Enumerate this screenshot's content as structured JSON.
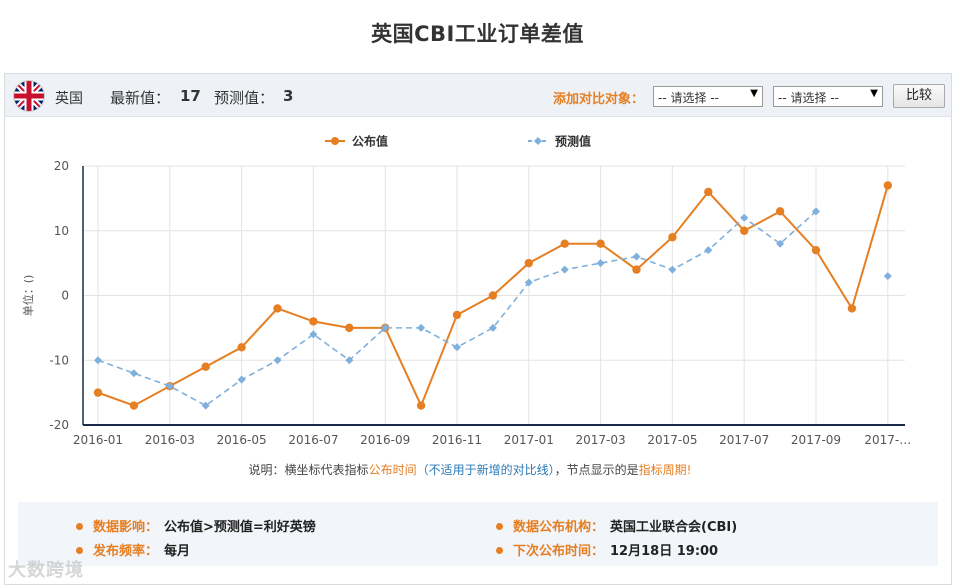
{
  "page": {
    "title": "英国CBI工业订单差值"
  },
  "toolbar": {
    "country": "英国",
    "latest_label": "最新值：",
    "latest_value": "17",
    "forecast_label": "预测值：",
    "forecast_value": "3",
    "compare_label": "添加对比对象：",
    "select_1": "-- 请选择 --",
    "select_2": "-- 请选择 --",
    "compare_button": "比较",
    "flag_icon": "uk-flag-icon"
  },
  "chart_data": {
    "type": "line",
    "ylabel": "单位：()",
    "ylim": [
      -20,
      20
    ],
    "yticks": [
      20,
      10,
      0,
      -10,
      -20
    ],
    "x": [
      "2016-01",
      "2016-02",
      "2016-03",
      "2016-04",
      "2016-05",
      "2016-06",
      "2016-07",
      "2016-08",
      "2016-09",
      "2016-10",
      "2016-11",
      "2016-12",
      "2017-01",
      "2017-02",
      "2017-03",
      "2017-04",
      "2017-05",
      "2017-06",
      "2017-07",
      "2017-08",
      "2017-09",
      "2017-10",
      "2017-11"
    ],
    "xtick_labels": [
      "2016-01",
      "2016-03",
      "2016-05",
      "2016-07",
      "2016-09",
      "2016-11",
      "2017-01",
      "2017-03",
      "2017-05",
      "2017-07",
      "2017-09",
      "2017-…"
    ],
    "series": [
      {
        "name": "公布值",
        "color": "#e67e22",
        "style": "solid",
        "values": [
          -15,
          -17,
          -14,
          -11,
          -8,
          -2,
          -4,
          -5,
          -5,
          -17,
          -3,
          0,
          5,
          8,
          8,
          4,
          9,
          16,
          10,
          13,
          7,
          -2,
          17
        ]
      },
      {
        "name": "预测值",
        "color": "#7fb0dc",
        "style": "dashed",
        "values": [
          -10,
          -12,
          -14,
          -17,
          -13,
          -10,
          -6,
          -10,
          -5,
          -5,
          -8,
          -5,
          2,
          4,
          5,
          6,
          4,
          7,
          12,
          8,
          13,
          null,
          3
        ]
      }
    ],
    "legend_position": "top-center",
    "grid": true,
    "note": {
      "p1": "说明：横坐标代表指标",
      "p2": "公布时间",
      "p3": "（不适用于新增的对比线）",
      "p4": "，节点显示的是",
      "p5": "指标周期",
      "p6": "!"
    }
  },
  "info": {
    "impact_label": "数据影响：",
    "impact_value": "公布值>预测值=利好英镑",
    "agency_label": "数据公布机构：",
    "agency_value": "英国工业联合会(CBI)",
    "freq_label": "发布频率：",
    "freq_value": "每月",
    "next_label": "下次公布时间：",
    "next_value": "12月18日 19:00"
  },
  "watermark": "大数跨境"
}
